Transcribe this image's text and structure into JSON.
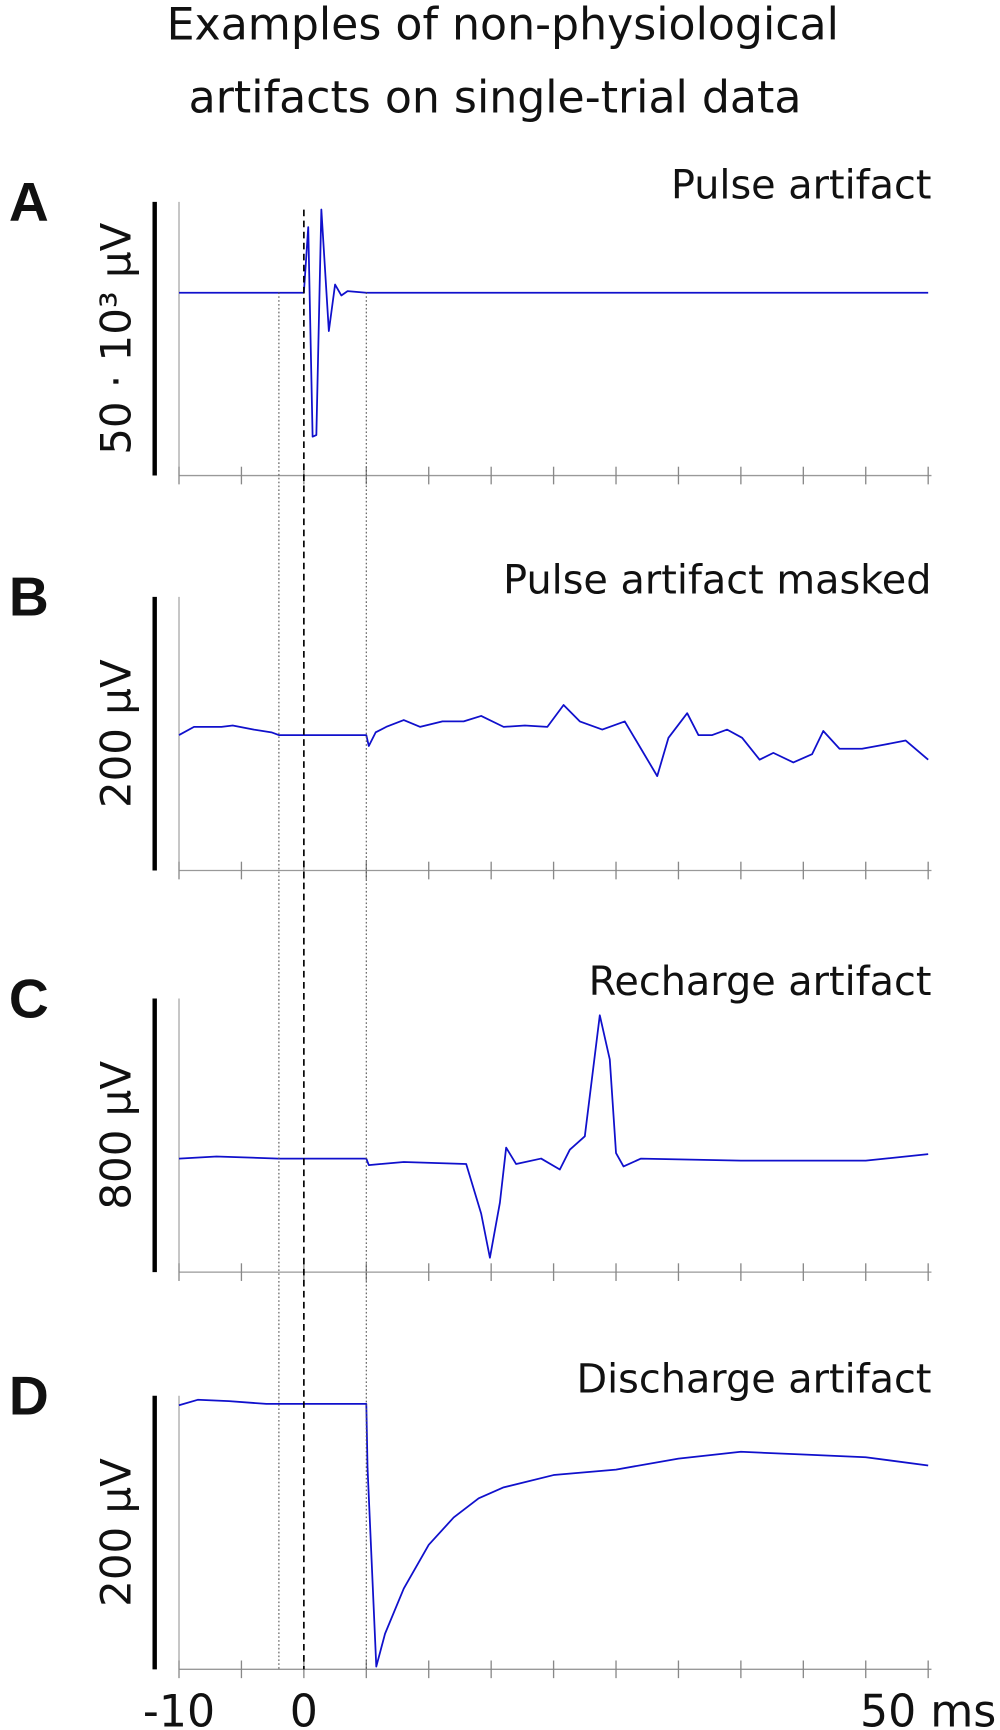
{
  "title": [
    "Examples of non-physiological",
    "artifacts on single-trial data"
  ],
  "reference_lines": [
    {
      "value": 0,
      "style": "dashed"
    },
    {
      "value": -2,
      "style": "dotted"
    },
    {
      "value": 5,
      "style": "dotted"
    }
  ],
  "chart_data": [
    {
      "type": "line",
      "panel": "A",
      "title": "Pulse artifact",
      "scale_bar_label": "50 · 10³ µV",
      "xlim": [
        -10,
        50
      ],
      "xticks": [
        -10,
        -5,
        0,
        5,
        10,
        15,
        20,
        25,
        30,
        35,
        40,
        45,
        50
      ],
      "ylim": [
        -33400,
        16600
      ],
      "color": "#1010cc",
      "x": [
        -10,
        0,
        0.35,
        0.7,
        1.0,
        1.4,
        2.0,
        2.5,
        3.0,
        3.5,
        5.0,
        50
      ],
      "values": [
        0,
        0,
        12000,
        -26300,
        -26000,
        15200,
        -7000,
        1500,
        -500,
        300,
        0,
        0
      ]
    },
    {
      "type": "line",
      "panel": "B",
      "title": "Pulse artifact masked",
      "scale_bar_label": "200 µV",
      "xlim": [
        -10,
        50
      ],
      "xticks": [
        -10,
        -5,
        0,
        5,
        10,
        15,
        20,
        25,
        30,
        35,
        40,
        45,
        50
      ],
      "ylim": [
        -99,
        101
      ],
      "color": "#1010cc",
      "x": [
        -10,
        -8.8,
        -6.6,
        -5.7,
        -4,
        -2.6,
        -2,
        5,
        5.2,
        5.75,
        6.6,
        8,
        9.3,
        11.1,
        12.8,
        14.2,
        16,
        17.7,
        19.5,
        20.8,
        22.1,
        23.9,
        25.7,
        27,
        28.3,
        29.2,
        30.7,
        31.6,
        32.7,
        33.9,
        35.1,
        36.5,
        37.6,
        39.2,
        40.7,
        41.6,
        42.9,
        44.7,
        46.5,
        48.2,
        50
      ],
      "values": [
        0,
        6,
        6,
        7,
        4,
        2,
        0,
        0,
        -8,
        2,
        6,
        11,
        6,
        10,
        10,
        14,
        6,
        7,
        6,
        22,
        10,
        4,
        10,
        -10,
        -30,
        -2,
        16,
        0,
        0,
        4,
        -2,
        -18,
        -13,
        -20,
        -14,
        3,
        -10,
        -10,
        -7,
        -4,
        -18
      ]
    },
    {
      "type": "line",
      "panel": "C",
      "title": "Recharge artifact",
      "scale_bar_label": "800 µV",
      "xlim": [
        -10,
        50
      ],
      "xticks": [
        -10,
        -5,
        0,
        5,
        10,
        15,
        20,
        25,
        30,
        35,
        40,
        45,
        50
      ],
      "ylim": [
        -332,
        468
      ],
      "color": "#1010cc",
      "x": [
        -10,
        -7,
        -2,
        5,
        5.2,
        8,
        13,
        14.2,
        14.9,
        15.7,
        16.2,
        17,
        19,
        20.5,
        21.3,
        22.5,
        23.7,
        24.5,
        25,
        25.6,
        27,
        35,
        45,
        50
      ],
      "values": [
        0,
        6,
        0,
        0,
        -19,
        -10,
        -16,
        -161,
        -290,
        -129,
        32,
        -16,
        0,
        -32,
        26,
        65,
        419,
        290,
        16,
        -23,
        0,
        -6,
        -6,
        13
      ]
    },
    {
      "type": "line",
      "panel": "D",
      "title": "Discharge artifact",
      "scale_bar_label": "200 µV",
      "xlim": [
        -10,
        50
      ],
      "xticks": [
        -10,
        -5,
        0,
        5,
        10,
        15,
        20,
        25,
        30,
        35,
        40,
        45,
        50
      ],
      "xtick_labels": [
        -10,
        0,
        {
          "value": 50,
          "label": "50 ms"
        }
      ],
      "ylim": [
        -194,
        6
      ],
      "color": "#1010cc",
      "x": [
        -10,
        -8.5,
        -6,
        -3,
        -2,
        5,
        5.1,
        5.8,
        6.5,
        8,
        10,
        12,
        14,
        16,
        20,
        25,
        30,
        35,
        40,
        45,
        50
      ],
      "values": [
        -1,
        3,
        2,
        0,
        0,
        0,
        -47,
        -192,
        -168,
        -135,
        -103,
        -83,
        -69,
        -61,
        -52,
        -48,
        -40,
        -35,
        -37,
        -39,
        -45
      ]
    }
  ]
}
